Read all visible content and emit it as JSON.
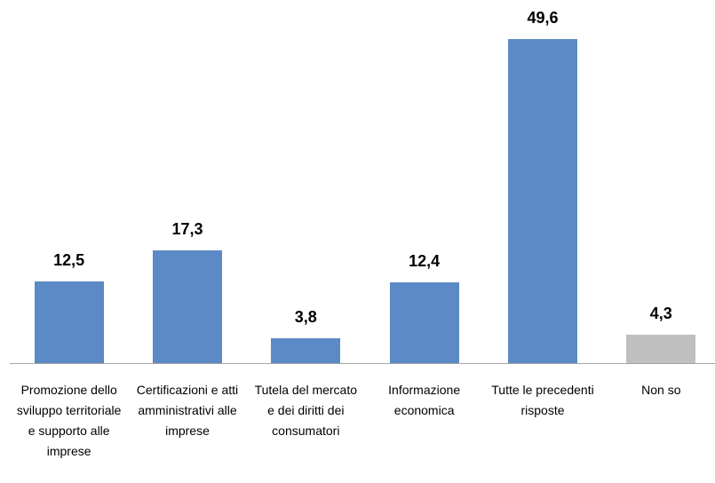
{
  "chart_data": {
    "type": "bar",
    "categories": [
      "Promozione dello sviluppo territoriale e supporto alle imprese",
      "Certificazioni e atti amministrativi alle imprese",
      "Tutela del mercato e dei diritti dei consumatori",
      "Informazione economica",
      "Tutte le precedenti risposte",
      "Non so"
    ],
    "values": [
      12.5,
      17.3,
      3.8,
      12.4,
      49.6,
      4.3
    ],
    "value_labels": [
      "12,5",
      "17,3",
      "3,8",
      "12,4",
      "49,6",
      "4,3"
    ],
    "colors": [
      "#5b8ac6",
      "#5b8ac6",
      "#5b8ac6",
      "#5b8ac6",
      "#5b8ac6",
      "#bfbfbf"
    ]
  }
}
